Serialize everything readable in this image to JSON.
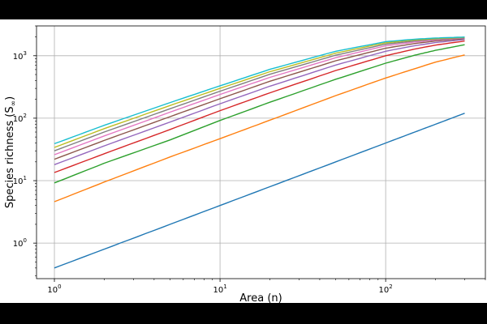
{
  "chart_data": {
    "type": "line",
    "xlabel": "Area (n)",
    "ylabel": "Species richness (S",
    "ylabel_sub": "∞",
    "ylabel_close": ")",
    "xscale": "log",
    "yscale": "log",
    "xlim": [
      0.78,
      400
    ],
    "ylim": [
      0.27,
      3000
    ],
    "grid": true,
    "x_ticks": [
      {
        "value": 1,
        "base": "10",
        "exp": "0"
      },
      {
        "value": 10,
        "base": "10",
        "exp": "1"
      },
      {
        "value": 100,
        "base": "10",
        "exp": "2"
      }
    ],
    "y_ticks": [
      {
        "value": 1,
        "base": "10",
        "exp": "0"
      },
      {
        "value": 10,
        "base": "10",
        "exp": "1"
      },
      {
        "value": 100,
        "base": "10",
        "exp": "2"
      },
      {
        "value": 1000,
        "base": "10",
        "exp": "3"
      }
    ],
    "x": [
      1,
      2,
      5,
      10,
      20,
      50,
      100,
      150,
      200,
      300
    ],
    "series": [
      {
        "color": "#1f77b4",
        "values": [
          0.4,
          0.8,
          2.0,
          4.0,
          8.0,
          20,
          40,
          60,
          80,
          120
        ]
      },
      {
        "color": "#ff7f0e",
        "values": [
          4.6,
          9.5,
          24,
          47,
          93,
          230,
          440,
          620,
          790,
          1030
        ]
      },
      {
        "color": "#2ca02c",
        "values": [
          9.2,
          19,
          45,
          92,
          180,
          420,
          760,
          1020,
          1220,
          1500
        ]
      },
      {
        "color": "#d62728",
        "values": [
          13.5,
          27,
          66,
          132,
          255,
          580,
          1000,
          1280,
          1480,
          1720
        ]
      },
      {
        "color": "#9467bd",
        "values": [
          18,
          36,
          87,
          170,
          325,
          710,
          1180,
          1450,
          1620,
          1820
        ]
      },
      {
        "color": "#8c564b",
        "values": [
          22,
          44,
          106,
          205,
          390,
          830,
          1320,
          1570,
          1720,
          1880
        ]
      },
      {
        "color": "#e377c2",
        "values": [
          26,
          52,
          125,
          240,
          450,
          930,
          1440,
          1660,
          1790,
          1920
        ]
      },
      {
        "color": "#7f7f7f",
        "values": [
          30,
          60,
          142,
          270,
          505,
          1020,
          1530,
          1730,
          1840,
          1950
        ]
      },
      {
        "color": "#bcbd22",
        "values": [
          34,
          68,
          160,
          300,
          555,
          1100,
          1610,
          1790,
          1880,
          1970
        ]
      },
      {
        "color": "#17becf",
        "values": [
          39,
          77,
          178,
          330,
          605,
          1180,
          1680,
          1840,
          1920,
          1990
        ]
      }
    ]
  }
}
